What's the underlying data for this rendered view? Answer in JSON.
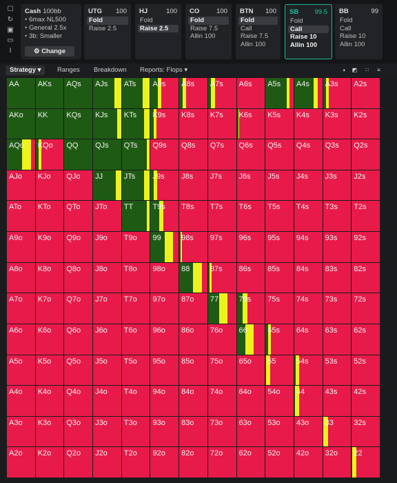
{
  "sidebar_icons": [
    "bookmark-icon",
    "refresh-icon",
    "save-icon",
    "monitor-icon",
    "text-cursor-icon"
  ],
  "setup": {
    "title": "Cash",
    "blinds": "100bb",
    "lines": [
      "6max NL500",
      "General 2.5x",
      "3b: Smaller"
    ],
    "change_label": "Change",
    "change_icon": "gear-icon"
  },
  "positions": [
    {
      "name": "UTG",
      "stack": "100",
      "actions": [
        {
          "label": "Fold",
          "on": true
        },
        {
          "label": "Raise 2.5",
          "on": false
        }
      ]
    },
    {
      "name": "HJ",
      "stack": "100",
      "actions": [
        {
          "label": "Fold",
          "on": false
        },
        {
          "label": "Raise 2.5",
          "on": true
        }
      ]
    },
    {
      "name": "CO",
      "stack": "100",
      "actions": [
        {
          "label": "Fold",
          "on": true
        },
        {
          "label": "Raise 7.5",
          "on": false
        },
        {
          "label": "Allin 100",
          "on": false
        }
      ]
    },
    {
      "name": "BTN",
      "stack": "100",
      "actions": [
        {
          "label": "Fold",
          "on": true
        },
        {
          "label": "Call",
          "on": false
        },
        {
          "label": "Raise 7.5",
          "on": false
        },
        {
          "label": "Allin 100",
          "on": false
        }
      ]
    },
    {
      "name": "SB",
      "stack": "99.5",
      "selected": true,
      "actions": [
        {
          "label": "Fold",
          "on": false
        },
        {
          "label": "Call",
          "on": true
        },
        {
          "label": "Raise 10",
          "on": false
        },
        {
          "label": "Allin 100",
          "on": false
        }
      ]
    },
    {
      "name": "BB",
      "stack": "99",
      "actions": [
        {
          "label": "Fold",
          "on": false
        },
        {
          "label": "Call",
          "on": false
        },
        {
          "label": "Raise 10",
          "on": false
        },
        {
          "label": "Allin 100",
          "on": false
        }
      ]
    }
  ],
  "tabs": {
    "strategy": "Strategy",
    "ranges": "Ranges",
    "breakdown": "Breakdown",
    "reports": "Reports: Flops"
  },
  "tools": [
    "circle-half-icon",
    "square-split-icon",
    "grid-icon",
    "list-icon"
  ],
  "colors": {
    "green": "#1f5a14",
    "yellow": "#eef21c",
    "red": "#e81a4a"
  },
  "matrix": {
    "labels": [
      [
        "AA",
        "AKs",
        "AQs",
        "AJs",
        "ATs",
        "A9s",
        "A8s",
        "A7s",
        "A6s",
        "A5s",
        "A4s",
        "A3s",
        "A2s"
      ],
      [
        "AKo",
        "KK",
        "KQs",
        "KJs",
        "KTs",
        "K9s",
        "K8s",
        "K7s",
        "K6s",
        "K5s",
        "K4s",
        "K3s",
        "K2s"
      ],
      [
        "AQo",
        "KQo",
        "QQ",
        "QJs",
        "QTs",
        "Q9s",
        "Q8s",
        "Q7s",
        "Q6s",
        "Q5s",
        "Q4s",
        "Q3s",
        "Q2s"
      ],
      [
        "AJo",
        "KJo",
        "QJo",
        "JJ",
        "JTs",
        "J9s",
        "J8s",
        "J7s",
        "J6s",
        "J5s",
        "J4s",
        "J3s",
        "J2s"
      ],
      [
        "ATo",
        "KTo",
        "QTo",
        "JTo",
        "TT",
        "T9s",
        "T8s",
        "T7s",
        "T6s",
        "T5s",
        "T4s",
        "T3s",
        "T2s"
      ],
      [
        "A9o",
        "K9o",
        "Q9o",
        "J9o",
        "T9o",
        "99",
        "98s",
        "97s",
        "96s",
        "95s",
        "94s",
        "93s",
        "92s"
      ],
      [
        "A8o",
        "K8o",
        "Q8o",
        "J8o",
        "T8o",
        "98o",
        "88",
        "87s",
        "86s",
        "85s",
        "84s",
        "83s",
        "82s"
      ],
      [
        "A7o",
        "K7o",
        "Q7o",
        "J7o",
        "T7o",
        "97o",
        "87o",
        "77",
        "76s",
        "75s",
        "74s",
        "73s",
        "72s"
      ],
      [
        "A6o",
        "K6o",
        "Q6o",
        "J6o",
        "T6o",
        "96o",
        "86o",
        "76o",
        "66",
        "65s",
        "64s",
        "63s",
        "62s"
      ],
      [
        "A5o",
        "K5o",
        "Q5o",
        "J5o",
        "T5o",
        "95o",
        "85o",
        "75o",
        "65o",
        "55",
        "54s",
        "53s",
        "52s"
      ],
      [
        "A4o",
        "K4o",
        "Q4o",
        "J4o",
        "T4o",
        "94o",
        "84o",
        "74o",
        "64o",
        "54o",
        "44",
        "43s",
        "42s"
      ],
      [
        "A3o",
        "K3o",
        "Q3o",
        "J3o",
        "T3o",
        "93o",
        "83o",
        "73o",
        "63o",
        "53o",
        "43o",
        "33",
        "32s"
      ],
      [
        "A2o",
        "K2o",
        "Q2o",
        "J2o",
        "T2o",
        "92o",
        "82o",
        "72o",
        "62o",
        "52o",
        "42o",
        "32o",
        "22"
      ]
    ],
    "freq": [
      [
        [
          1,
          0
        ],
        [
          1,
          0
        ],
        [
          1,
          0
        ],
        [
          0.75,
          0.25
        ],
        [
          0.75,
          0.25
        ],
        [
          0.25,
          0.12
        ],
        [
          0.12,
          0.12
        ],
        [
          0.1,
          0.15
        ],
        [
          0,
          0
        ],
        [
          0.75,
          0.1
        ],
        [
          0.7,
          0.15
        ],
        [
          0.1,
          0.1
        ],
        [
          0,
          0
        ]
      ],
      [
        [
          1,
          0
        ],
        [
          1,
          0
        ],
        [
          1,
          0
        ],
        [
          0.85,
          0.15
        ],
        [
          0.8,
          0.2
        ],
        [
          0.1,
          0.1
        ],
        [
          0,
          0
        ],
        [
          0,
          0
        ],
        [
          0.05,
          0.02
        ],
        [
          0,
          0
        ],
        [
          0,
          0
        ],
        [
          0,
          0
        ],
        [
          0,
          0
        ]
      ],
      [
        [
          0.55,
          0.3
        ],
        [
          0.1,
          0.1
        ],
        [
          1,
          0
        ],
        [
          1,
          0
        ],
        [
          0.9,
          0.1
        ],
        [
          0,
          0
        ],
        [
          0,
          0
        ],
        [
          0,
          0
        ],
        [
          0,
          0
        ],
        [
          0,
          0
        ],
        [
          0,
          0
        ],
        [
          0,
          0
        ],
        [
          0,
          0
        ]
      ],
      [
        [
          0,
          0
        ],
        [
          0,
          0
        ],
        [
          0,
          0
        ],
        [
          0.8,
          0.2
        ],
        [
          0.8,
          0.2
        ],
        [
          0.12,
          0.12
        ],
        [
          0,
          0
        ],
        [
          0,
          0
        ],
        [
          0,
          0
        ],
        [
          0,
          0
        ],
        [
          0,
          0
        ],
        [
          0,
          0
        ],
        [
          0,
          0
        ]
      ],
      [
        [
          0,
          0
        ],
        [
          0,
          0
        ],
        [
          0,
          0
        ],
        [
          0,
          0
        ],
        [
          0.9,
          0.1
        ],
        [
          0.3,
          0.15
        ],
        [
          0,
          0
        ],
        [
          0,
          0
        ],
        [
          0,
          0
        ],
        [
          0,
          0
        ],
        [
          0,
          0
        ],
        [
          0,
          0
        ],
        [
          0,
          0
        ]
      ],
      [
        [
          0,
          0
        ],
        [
          0,
          0
        ],
        [
          0,
          0
        ],
        [
          0,
          0
        ],
        [
          0,
          0
        ],
        [
          0.5,
          0.3
        ],
        [
          0.05,
          0.05
        ],
        [
          0,
          0
        ],
        [
          0,
          0
        ],
        [
          0,
          0
        ],
        [
          0,
          0
        ],
        [
          0,
          0
        ],
        [
          0,
          0
        ]
      ],
      [
        [
          0,
          0
        ],
        [
          0,
          0
        ],
        [
          0,
          0
        ],
        [
          0,
          0
        ],
        [
          0,
          0
        ],
        [
          0,
          0
        ],
        [
          0.5,
          0.3
        ],
        [
          0.05,
          0.08
        ],
        [
          0,
          0
        ],
        [
          0,
          0
        ],
        [
          0,
          0
        ],
        [
          0,
          0
        ],
        [
          0,
          0
        ]
      ],
      [
        [
          0,
          0
        ],
        [
          0,
          0
        ],
        [
          0,
          0
        ],
        [
          0,
          0
        ],
        [
          0,
          0
        ],
        [
          0,
          0
        ],
        [
          0,
          0
        ],
        [
          0.4,
          0.3
        ],
        [
          0.2,
          0.18
        ],
        [
          0,
          0
        ],
        [
          0,
          0
        ],
        [
          0,
          0
        ],
        [
          0,
          0
        ]
      ],
      [
        [
          0,
          0
        ],
        [
          0,
          0
        ],
        [
          0,
          0
        ],
        [
          0,
          0
        ],
        [
          0,
          0
        ],
        [
          0,
          0
        ],
        [
          0,
          0
        ],
        [
          0,
          0
        ],
        [
          0.3,
          0.3
        ],
        [
          0.1,
          0.1
        ],
        [
          0,
          0
        ],
        [
          0,
          0
        ],
        [
          0,
          0
        ]
      ],
      [
        [
          0,
          0
        ],
        [
          0,
          0
        ],
        [
          0,
          0
        ],
        [
          0,
          0
        ],
        [
          0,
          0
        ],
        [
          0,
          0
        ],
        [
          0,
          0
        ],
        [
          0,
          0
        ],
        [
          0,
          0
        ],
        [
          0.02,
          0.15
        ],
        [
          0.05,
          0.12
        ],
        [
          0,
          0
        ],
        [
          0,
          0
        ]
      ],
      [
        [
          0,
          0
        ],
        [
          0,
          0
        ],
        [
          0,
          0
        ],
        [
          0,
          0
        ],
        [
          0,
          0
        ],
        [
          0,
          0
        ],
        [
          0,
          0
        ],
        [
          0,
          0
        ],
        [
          0,
          0
        ],
        [
          0,
          0
        ],
        [
          0.02,
          0.15
        ],
        [
          0,
          0
        ],
        [
          0,
          0
        ]
      ],
      [
        [
          0,
          0
        ],
        [
          0,
          0
        ],
        [
          0,
          0
        ],
        [
          0,
          0
        ],
        [
          0,
          0
        ],
        [
          0,
          0
        ],
        [
          0,
          0
        ],
        [
          0,
          0
        ],
        [
          0,
          0
        ],
        [
          0,
          0
        ],
        [
          0,
          0
        ],
        [
          0.02,
          0.15
        ],
        [
          0,
          0
        ]
      ],
      [
        [
          0,
          0
        ],
        [
          0,
          0
        ],
        [
          0,
          0
        ],
        [
          0,
          0
        ],
        [
          0,
          0
        ],
        [
          0,
          0
        ],
        [
          0,
          0
        ],
        [
          0,
          0
        ],
        [
          0,
          0
        ],
        [
          0,
          0
        ],
        [
          0,
          0
        ],
        [
          0,
          0
        ],
        [
          0.02,
          0.15
        ]
      ]
    ]
  }
}
